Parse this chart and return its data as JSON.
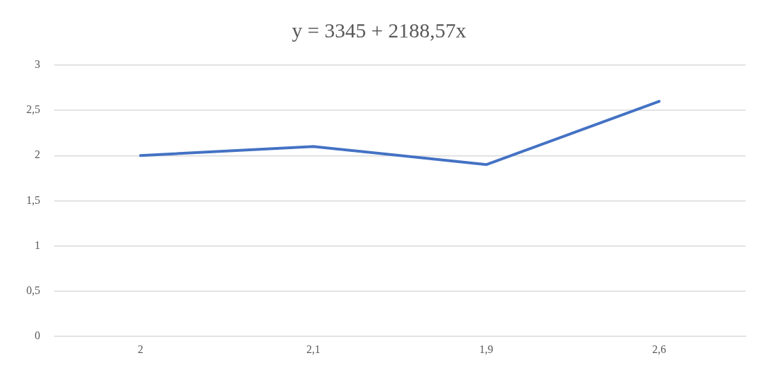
{
  "chart_data": {
    "type": "line",
    "title": "y = 3345 + 2188,57x",
    "categories": [
      "2",
      "2,1",
      "1,9",
      "2,6"
    ],
    "series": [
      {
        "color": "#4472c4",
        "values": [
          2,
          2.1,
          1.9,
          2.6
        ]
      }
    ],
    "ylim": [
      0,
      3
    ],
    "yticks": [
      0,
      {
        "value": 0.5,
        "label": "0,5"
      },
      1,
      {
        "value": 1.5,
        "label": "1,5"
      },
      2,
      {
        "value": 2.5,
        "label": "2,5"
      },
      3
    ],
    "grid": "y",
    "legend": false,
    "marker": "none",
    "line_style": "solid"
  }
}
